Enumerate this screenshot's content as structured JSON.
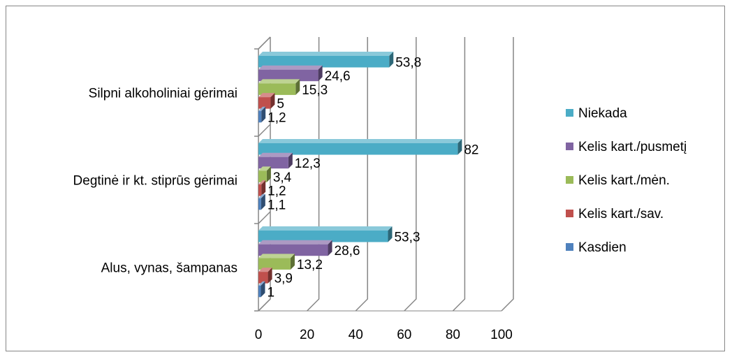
{
  "chart_data": {
    "type": "bar",
    "orientation": "horizontal",
    "style": "3d-clustered",
    "categories": [
      "Silpni alkoholiniai gėrimai",
      "Degtinė ir kt. stiprūs gėrimai",
      "Alus, vynas, šampanas"
    ],
    "series": [
      {
        "name": "Niekada",
        "color": "#4BACC6",
        "values": [
          53.8,
          82,
          53.3
        ],
        "labels": [
          "53,8",
          "82",
          "53,3"
        ]
      },
      {
        "name": "Kelis kart./pusmetį",
        "color": "#8064A2",
        "values": [
          24.6,
          12.3,
          28.6
        ],
        "labels": [
          "24,6",
          "12,3",
          "28,6"
        ]
      },
      {
        "name": "Kelis kart./mėn.",
        "color": "#9BBB59",
        "values": [
          15.3,
          3.4,
          13.2
        ],
        "labels": [
          "15,3",
          "3,4",
          "13,2"
        ]
      },
      {
        "name": "Kelis kart./sav.",
        "color": "#C0504D",
        "values": [
          5,
          1.2,
          3.9
        ],
        "labels": [
          "5",
          "1,2",
          "3,9"
        ]
      },
      {
        "name": "Kasdien",
        "color": "#4F81BD",
        "values": [
          1.2,
          1.1,
          1
        ],
        "labels": [
          "1,2",
          "1,1",
          "1"
        ]
      }
    ],
    "xlim": [
      0,
      100
    ],
    "xticks": [
      0,
      20,
      40,
      60,
      80,
      100
    ],
    "xtick_labels": [
      "0",
      "20",
      "40",
      "60",
      "80",
      "100"
    ],
    "grid": true,
    "legend_position": "right",
    "title": "",
    "xlabel": "",
    "ylabel": ""
  }
}
